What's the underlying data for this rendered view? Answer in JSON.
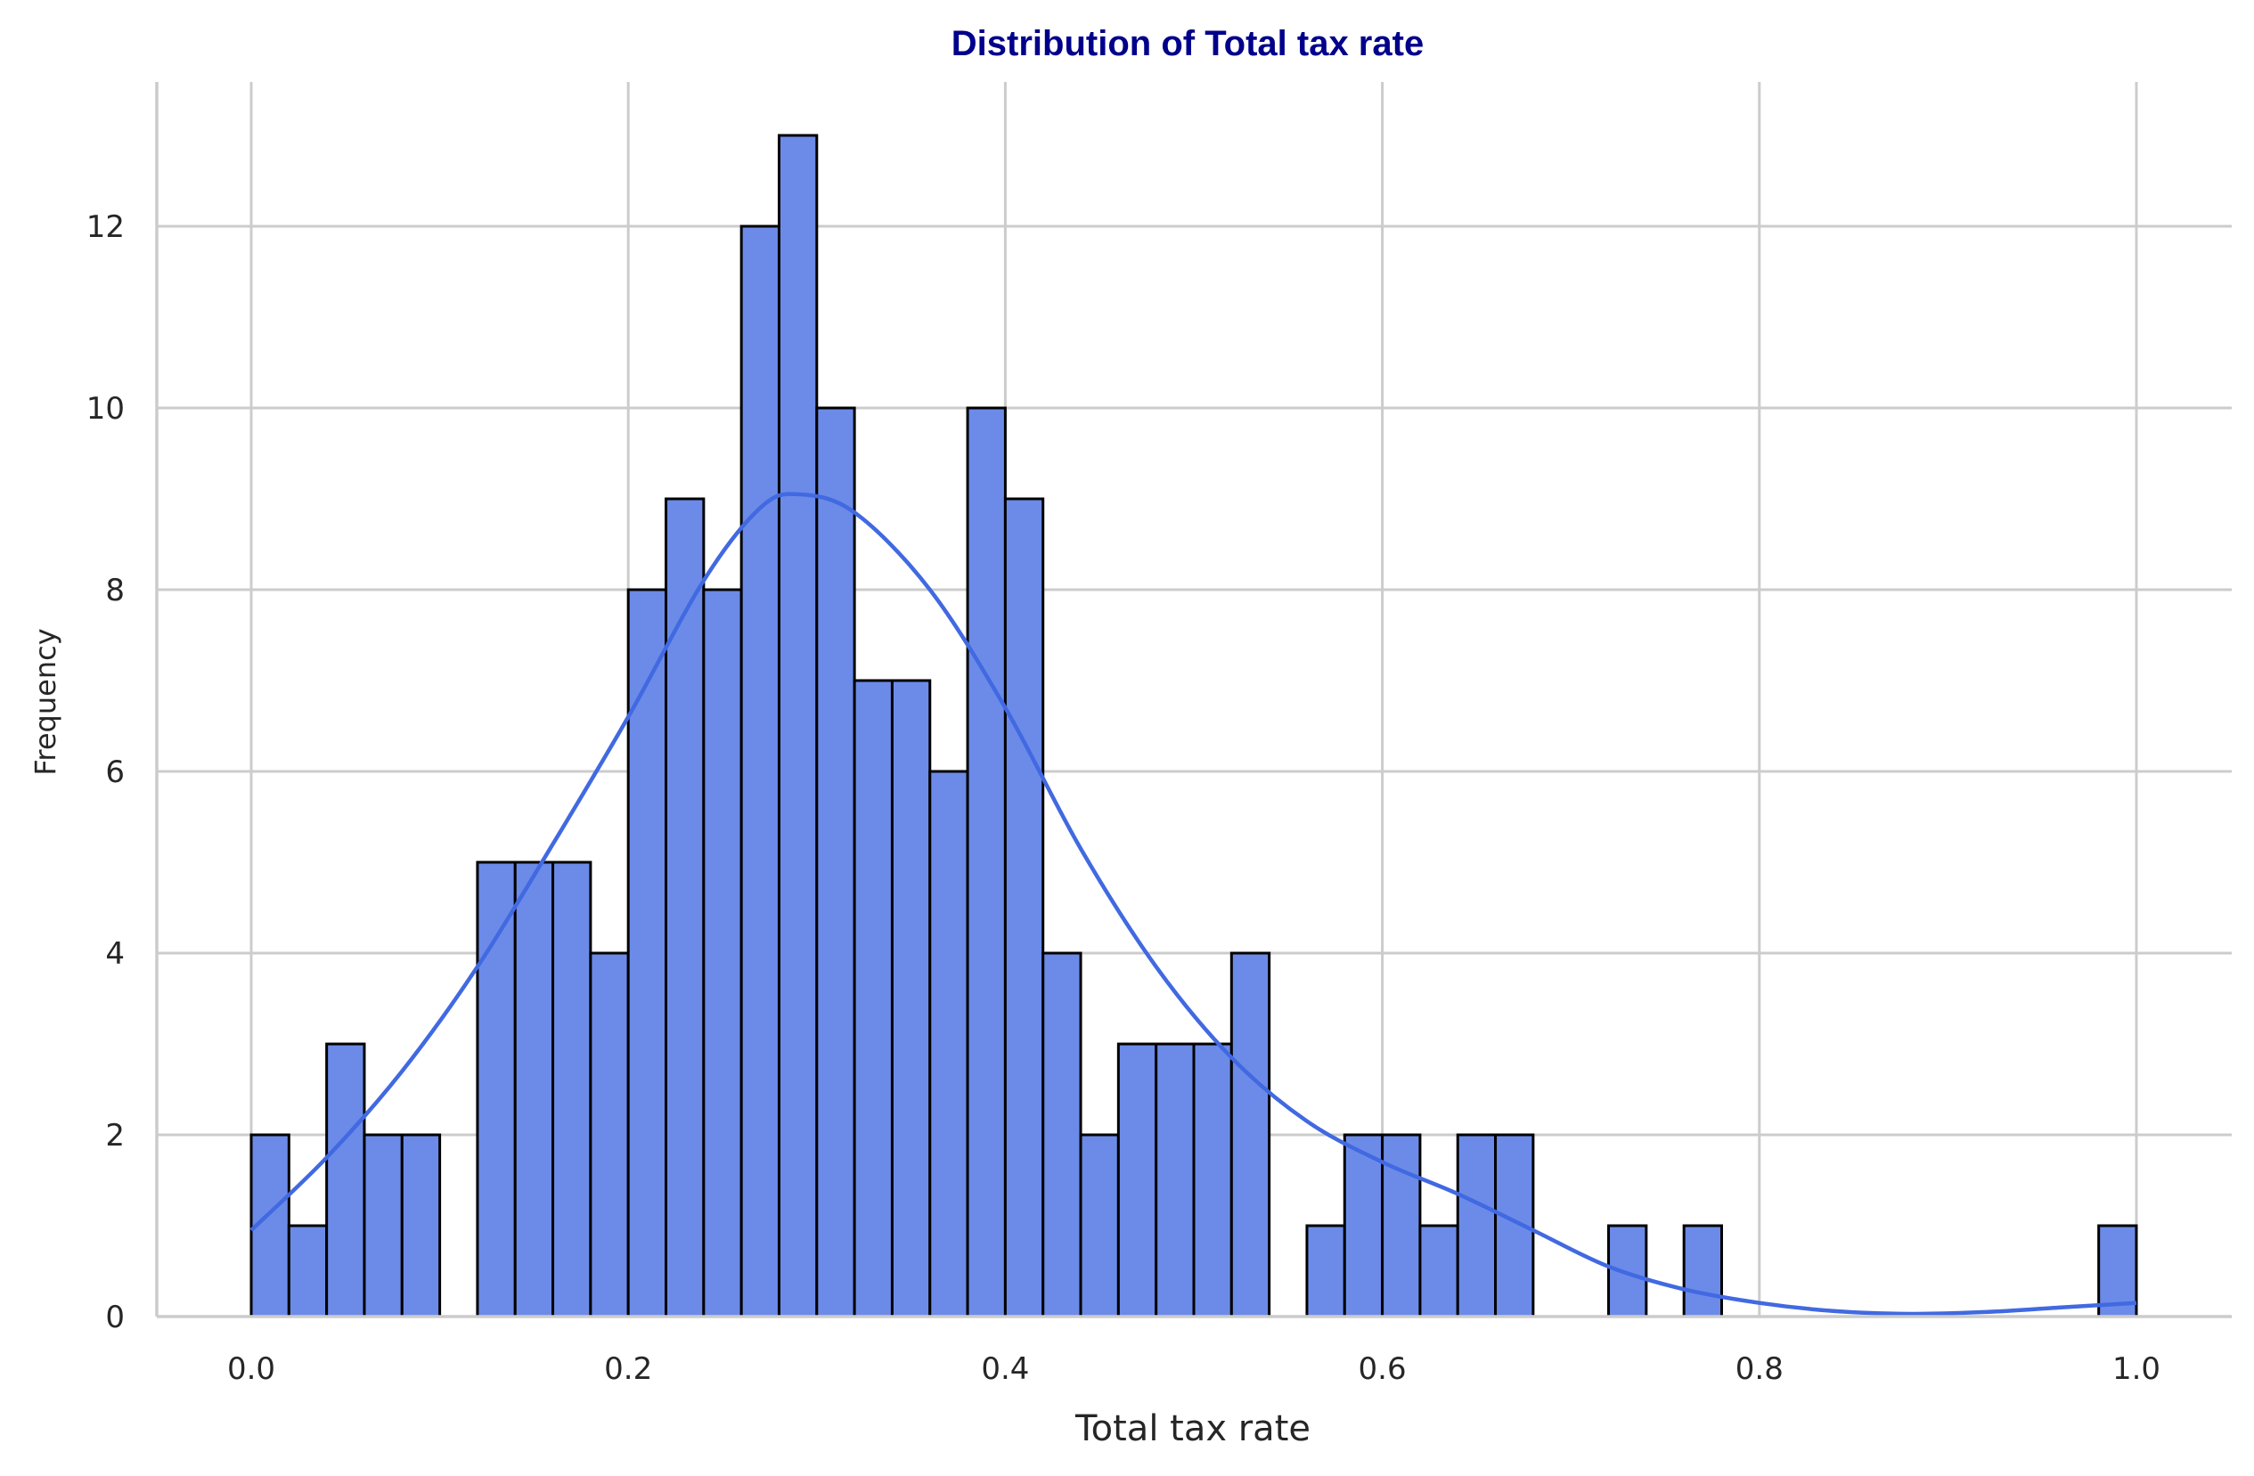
{
  "chart_data": {
    "type": "bar",
    "title": "Distribution of Total tax rate",
    "xlabel": "Total tax rate",
    "ylabel": "Frequency",
    "xlim": [
      -0.05,
      1.05
    ],
    "ylim": [
      0,
      13.65
    ],
    "x_ticks": [
      0.0,
      0.2,
      0.4,
      0.6,
      0.8,
      1.0
    ],
    "x_tick_labels": [
      "0.0",
      "0.2",
      "0.4",
      "0.6",
      "0.8",
      "1.0"
    ],
    "y_ticks": [
      0,
      2,
      4,
      6,
      8,
      10,
      12
    ],
    "y_tick_labels": [
      "0",
      "2",
      "4",
      "6",
      "8",
      "10",
      "12"
    ],
    "grid": true,
    "bin_width": 0.02,
    "bins_start": [
      0.0,
      0.02,
      0.04,
      0.06,
      0.08,
      0.1,
      0.12,
      0.14,
      0.16,
      0.18,
      0.2,
      0.22,
      0.24,
      0.26,
      0.28,
      0.3,
      0.32,
      0.34,
      0.36,
      0.38,
      0.4,
      0.42,
      0.44,
      0.46,
      0.48,
      0.5,
      0.52,
      0.54,
      0.56,
      0.58,
      0.6,
      0.62,
      0.64,
      0.66,
      0.68,
      0.7,
      0.72,
      0.74,
      0.76,
      0.78,
      0.8,
      0.82,
      0.84,
      0.86,
      0.88,
      0.9,
      0.92,
      0.94,
      0.96,
      0.98
    ],
    "values": [
      2,
      1,
      3,
      2,
      2,
      0,
      5,
      5,
      5,
      4,
      8,
      9,
      8,
      12,
      13,
      10,
      7,
      7,
      6,
      10,
      9,
      4,
      2,
      3,
      3,
      3,
      4,
      0,
      1,
      2,
      2,
      1,
      2,
      2,
      0,
      0,
      1,
      0,
      1,
      0,
      0,
      0,
      0,
      0,
      0,
      0,
      0,
      0,
      0,
      1
    ],
    "kde": {
      "x": [
        0.0,
        0.04,
        0.08,
        0.12,
        0.16,
        0.2,
        0.24,
        0.27,
        0.29,
        0.32,
        0.36,
        0.4,
        0.44,
        0.48,
        0.52,
        0.56,
        0.6,
        0.64,
        0.68,
        0.72,
        0.76,
        0.8,
        0.84,
        0.88,
        0.92,
        0.96,
        1.0
      ],
      "y": [
        0.95,
        1.75,
        2.7,
        3.85,
        5.2,
        6.6,
        8.1,
        8.9,
        9.05,
        8.85,
        8.0,
        6.7,
        5.15,
        3.85,
        2.85,
        2.15,
        1.7,
        1.35,
        0.95,
        0.55,
        0.3,
        0.15,
        0.06,
        0.03,
        0.05,
        0.1,
        0.15
      ]
    },
    "colors": {
      "bar_fill": "#6C8BE8",
      "bar_edge": "#000000",
      "kde_line": "#4169E1",
      "title": "#00008B",
      "grid": "#CCCCCC",
      "axis": "#CCCCCC"
    }
  }
}
